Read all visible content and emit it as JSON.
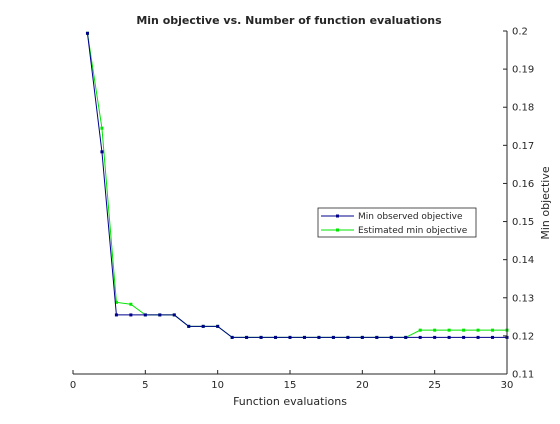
{
  "chart_data": {
    "type": "line",
    "title": "Min objective vs. Number of function evaluations",
    "xlabel": "Function evaluations",
    "ylabel": "Min objective",
    "xlim": [
      0,
      30
    ],
    "ylim": [
      0.11,
      0.2
    ],
    "xticks": [
      0,
      5,
      10,
      15,
      20,
      25,
      30
    ],
    "yticks": [
      0.11,
      0.12,
      0.13,
      0.14,
      0.15,
      0.16,
      0.17,
      0.18,
      0.19,
      0.2
    ],
    "ytick_labels": [
      "0.11",
      "0.12",
      "0.13",
      "0.14",
      "0.15",
      "0.16",
      "0.17",
      "0.18",
      "0.19",
      "0.2"
    ],
    "y_axis_location": "right",
    "grid": false,
    "legend_position": "right-center",
    "x": [
      1,
      2,
      3,
      4,
      5,
      6,
      7,
      8,
      9,
      10,
      11,
      12,
      13,
      14,
      15,
      16,
      17,
      18,
      19,
      20,
      21,
      22,
      23,
      24,
      25,
      26,
      27,
      28,
      29,
      30
    ],
    "series": [
      {
        "name": "Min observed objective",
        "color": "#00008b",
        "values": [
          0.1994,
          0.1683,
          0.1255,
          0.1255,
          0.1255,
          0.1255,
          0.1255,
          0.1225,
          0.1225,
          0.1225,
          0.1196,
          0.1196,
          0.1196,
          0.1196,
          0.1196,
          0.1196,
          0.1196,
          0.1196,
          0.1196,
          0.1196,
          0.1196,
          0.1196,
          0.1196,
          0.1196,
          0.1196,
          0.1196,
          0.1196,
          0.1196,
          0.1196,
          0.1196
        ]
      },
      {
        "name": "Estimated min objective",
        "color": "#00e600",
        "values": [
          0.1994,
          0.1745,
          0.1288,
          0.1283,
          0.1255,
          0.1255,
          0.1255,
          0.1225,
          0.1225,
          0.1225,
          0.1196,
          0.1196,
          0.1196,
          0.1196,
          0.1196,
          0.1196,
          0.1196,
          0.1196,
          0.1196,
          0.1196,
          0.1196,
          0.1196,
          0.1196,
          0.1215,
          0.1215,
          0.1215,
          0.1215,
          0.1215,
          0.1215,
          0.1215
        ]
      }
    ]
  }
}
